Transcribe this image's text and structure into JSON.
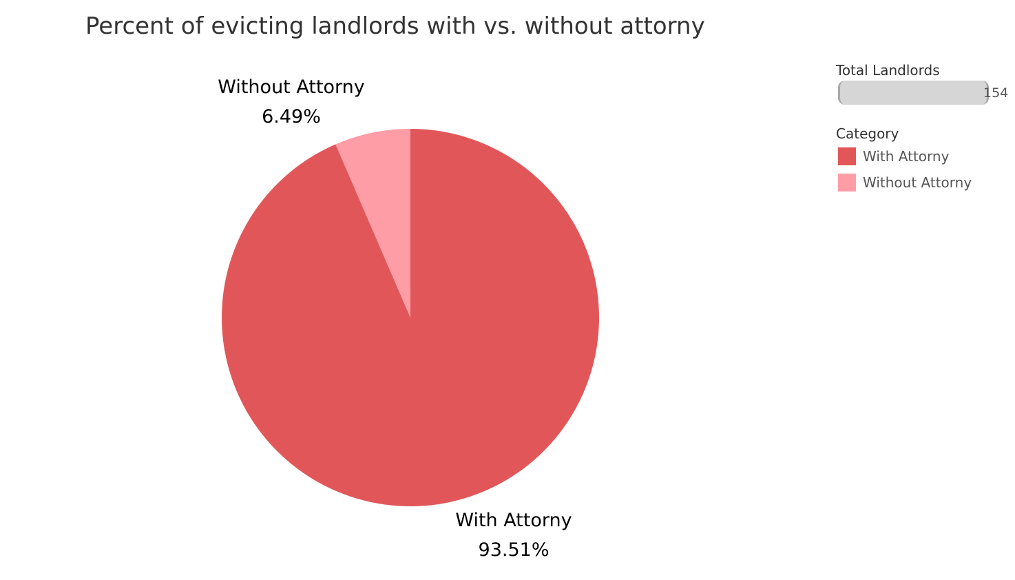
{
  "chart_data": {
    "type": "pie",
    "title": "Percent of evicting landlords with vs. without attorny",
    "slices": [
      {
        "name": "With Attorny",
        "value": 93.51,
        "label": "93.51%",
        "color": "#e15759"
      },
      {
        "name": "Without Attorny",
        "value": 6.49,
        "label": "6.49%",
        "color": "#ff9da7"
      }
    ],
    "legend": {
      "placement": "right",
      "size_title": "Total Landlords",
      "size_value": "154",
      "color_title": "Category",
      "items": [
        {
          "label": "With Attorny",
          "color": "#e15759"
        },
        {
          "label": "Without Attorny",
          "color": "#ff9da7"
        }
      ]
    }
  }
}
